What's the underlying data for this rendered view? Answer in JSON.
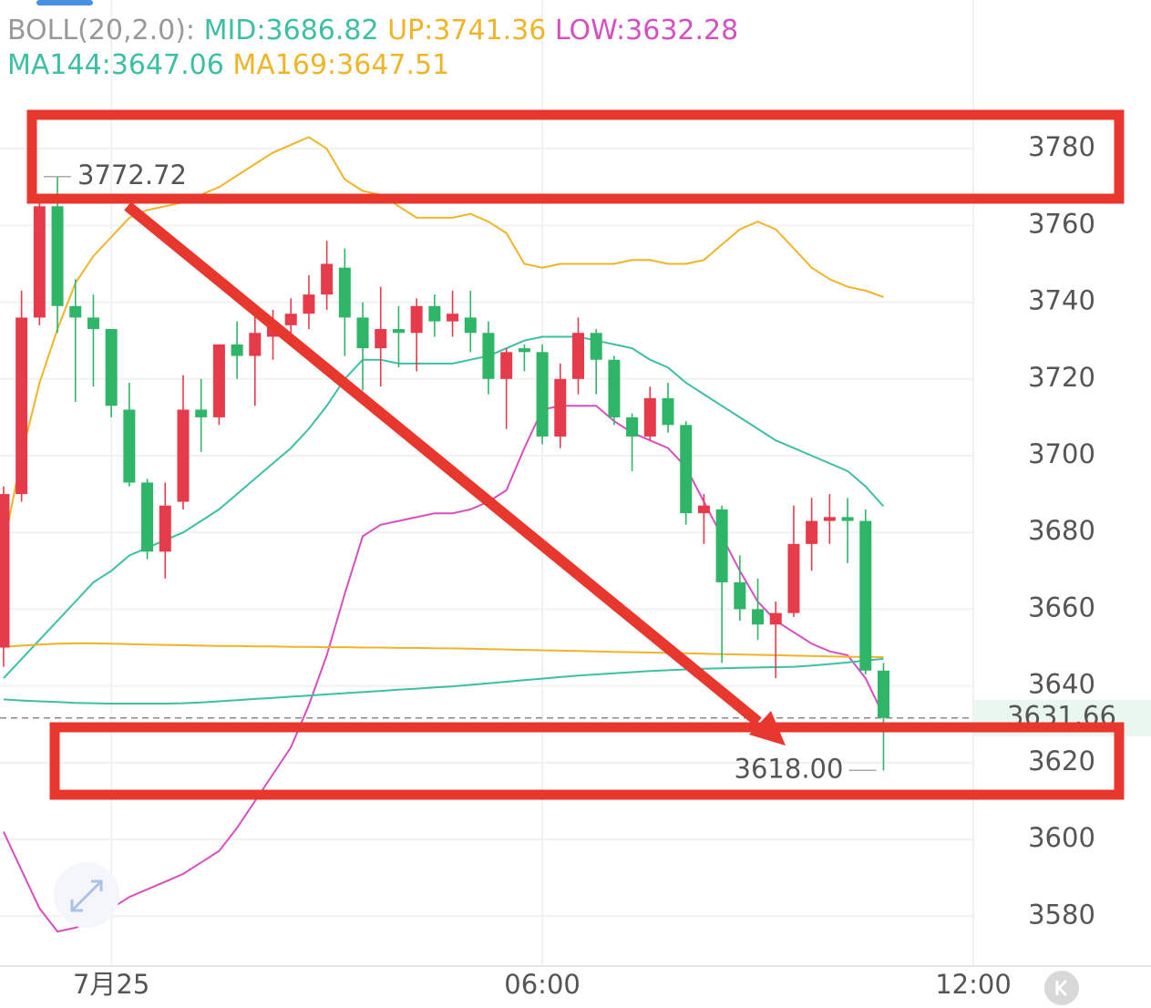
{
  "chart_data": {
    "type": "candlestick",
    "indicator_label": "BOLL(20,2.0):",
    "up_color": "#e63b4a",
    "down_color": "#2fb567",
    "x": [
      -1.5,
      -1.25,
      -1,
      -0.75,
      -0.5,
      -0.25,
      0,
      0.25,
      0.5,
      0.75,
      1,
      1.25,
      1.5,
      1.75,
      2,
      2.25,
      2.5,
      2.75,
      3,
      3.25,
      3.5,
      3.75,
      4,
      4.25,
      4.5,
      4.75,
      5,
      5.25,
      5.5,
      5.75,
      6,
      6.25,
      6.5,
      6.75,
      7,
      7.25,
      7.5,
      7.75,
      8,
      8.25,
      8.5,
      8.75,
      9,
      9.25,
      9.5,
      9.75,
      10,
      10.25,
      10.5,
      10.75
    ],
    "open": [
      3650,
      3690,
      3736,
      3765,
      3739,
      3736,
      3733,
      3712,
      3693,
      3675,
      3688,
      3712,
      3710,
      3729,
      3726,
      3731,
      3734,
      3737,
      3742,
      3749,
      3736,
      3728,
      3733,
      3732,
      3739,
      3735,
      3736,
      3732,
      3720,
      3728,
      3727,
      3705,
      3720,
      3732,
      3725,
      3710,
      3705,
      3715,
      3708,
      3685,
      3686,
      3667,
      3660,
      3656,
      3659,
      3677,
      3683,
      3684,
      3683,
      3644
    ],
    "high": [
      3692,
      3743,
      3767,
      3772.72,
      3746,
      3742,
      3733,
      3719,
      3694,
      3693,
      3721,
      3720,
      3729,
      3735,
      3738,
      3738,
      3741,
      3747,
      3756,
      3754,
      3740,
      3744,
      3739,
      3741,
      3742,
      3743,
      3743,
      3735,
      3728,
      3729,
      3729,
      3724,
      3736,
      3733,
      3726,
      3711,
      3718,
      3719,
      3709,
      3690,
      3687,
      3674,
      3668,
      3662,
      3687,
      3689,
      3690,
      3689,
      3686,
      3646
    ],
    "low": [
      3645,
      3688,
      3734,
      3732,
      3714,
      3718,
      3710,
      3692,
      3673,
      3668,
      3686,
      3701,
      3708,
      3720,
      3713,
      3725,
      3730,
      3733,
      3738,
      3726,
      3717,
      3718,
      3723,
      3722,
      3731,
      3731,
      3727,
      3716,
      3707,
      3722,
      3703,
      3702,
      3716,
      3716,
      3708,
      3696,
      3704,
      3706,
      3682,
      3677,
      3646,
      3657,
      3652,
      3642,
      3658,
      3670,
      3677,
      3672,
      3643,
      3618
    ],
    "close": [
      3690,
      3736,
      3765,
      3739,
      3736,
      3733,
      3713,
      3693,
      3675,
      3687,
      3712,
      3710,
      3729,
      3726,
      3732,
      3734,
      3737,
      3742,
      3750,
      3736,
      3728,
      3733,
      3732,
      3739,
      3735,
      3737,
      3732,
      3720,
      3727,
      3727,
      3705,
      3720,
      3732,
      3725,
      3710,
      3705,
      3715,
      3708,
      3685,
      3687,
      3667,
      3660,
      3656,
      3659,
      3677,
      3683,
      3684,
      3683,
      3644,
      3631.66
    ],
    "overlays": [
      {
        "label": "MID:3686.82",
        "color": "#3dbfa3",
        "values": [
          3642,
          3647,
          3652,
          3657,
          3662,
          3667,
          3670,
          3674,
          3676,
          3678,
          3680,
          3683,
          3686,
          3690,
          3694,
          3698,
          3702,
          3707,
          3713,
          3720,
          3725,
          3725,
          3724,
          3724,
          3724,
          3724,
          3725,
          3726,
          3728,
          3730,
          3731,
          3731,
          3731,
          3730,
          3729,
          3728,
          3725,
          3723,
          3719,
          3716,
          3713,
          3710,
          3707,
          3704,
          3702,
          3700,
          3698,
          3696,
          3692,
          3686.82
        ]
      },
      {
        "label": "UP:3741.36",
        "color": "#f0b429",
        "values": [
          3676,
          3700,
          3719,
          3733,
          3745,
          3752,
          3757,
          3762,
          3764,
          3765,
          3766,
          3768,
          3770,
          3773,
          3776,
          3779,
          3781,
          3783,
          3780,
          3772,
          3769,
          3768,
          3765,
          3762,
          3762,
          3762,
          3763,
          3761,
          3758,
          3750,
          3749,
          3750,
          3750,
          3750,
          3750,
          3751,
          3751,
          3750,
          3750,
          3751,
          3755,
          3759,
          3761,
          3759,
          3754,
          3749,
          3746,
          3744,
          3743,
          3741.36
        ]
      },
      {
        "label": "LOW:3632.28",
        "color": "#d64fc0",
        "values": [
          3602,
          3592,
          3582,
          3576,
          3577,
          3579,
          3582,
          3585,
          3587,
          3589,
          3591,
          3594,
          3597,
          3603,
          3610,
          3617,
          3624,
          3635,
          3648,
          3664,
          3679,
          3682,
          3683,
          3684,
          3685,
          3685,
          3686,
          3688,
          3691,
          3702,
          3712,
          3713,
          3713,
          3713,
          3709,
          3706,
          3704,
          3702,
          3697,
          3688,
          3679,
          3670,
          3662,
          3657,
          3654,
          3651,
          3649,
          3648,
          3642,
          3632.28
        ]
      },
      {
        "label": "MA144:3647.06",
        "color": "#3dbfa3",
        "values": [
          3636.5,
          3636.2,
          3636.0,
          3635.8,
          3635.6,
          3635.5,
          3635.4,
          3635.4,
          3635.4,
          3635.4,
          3635.5,
          3635.7,
          3636.0,
          3636.3,
          3636.6,
          3636.9,
          3637.2,
          3637.5,
          3637.8,
          3638.1,
          3638.4,
          3638.7,
          3639.0,
          3639.3,
          3639.6,
          3639.9,
          3640.3,
          3640.7,
          3641.1,
          3641.5,
          3641.9,
          3642.3,
          3642.7,
          3643.0,
          3643.3,
          3643.6,
          3643.9,
          3644.1,
          3644.3,
          3644.5,
          3644.6,
          3644.7,
          3644.8,
          3644.9,
          3645.0,
          3645.3,
          3645.7,
          3646.1,
          3646.6,
          3647.06
        ]
      },
      {
        "label": "MA169:3647.51",
        "color": "#f0b429",
        "values": [
          3650.2,
          3650.5,
          3650.8,
          3651.0,
          3651.1,
          3651.1,
          3651.0,
          3650.9,
          3650.8,
          3650.7,
          3650.6,
          3650.5,
          3650.4,
          3650.4,
          3650.3,
          3650.3,
          3650.2,
          3650.2,
          3650.1,
          3650.1,
          3650.0,
          3650.0,
          3649.9,
          3649.9,
          3649.8,
          3649.8,
          3649.7,
          3649.6,
          3649.5,
          3649.4,
          3649.3,
          3649.2,
          3649.1,
          3649.0,
          3648.9,
          3648.8,
          3648.7,
          3648.6,
          3648.5,
          3648.4,
          3648.3,
          3648.2,
          3648.1,
          3648.0,
          3647.9,
          3647.8,
          3647.7,
          3647.6,
          3647.55,
          3647.51
        ]
      }
    ],
    "max_label": 3772.72,
    "min_label": {
      "value": 3618,
      "label": "3618.00"
    },
    "last_price": 3631.66,
    "xlim": [
      -1.55,
      12
    ],
    "xticks": [
      {
        "value": 0,
        "label": "7月25"
      },
      {
        "value": 6,
        "label": "06:00"
      },
      {
        "value": 12,
        "label": "12:00"
      }
    ],
    "ylim": [
      3567,
      3795
    ],
    "yticks": [
      3580,
      3600,
      3620,
      3640,
      3660,
      3680,
      3700,
      3720,
      3740,
      3760,
      3780
    ],
    "grid": true
  }
}
